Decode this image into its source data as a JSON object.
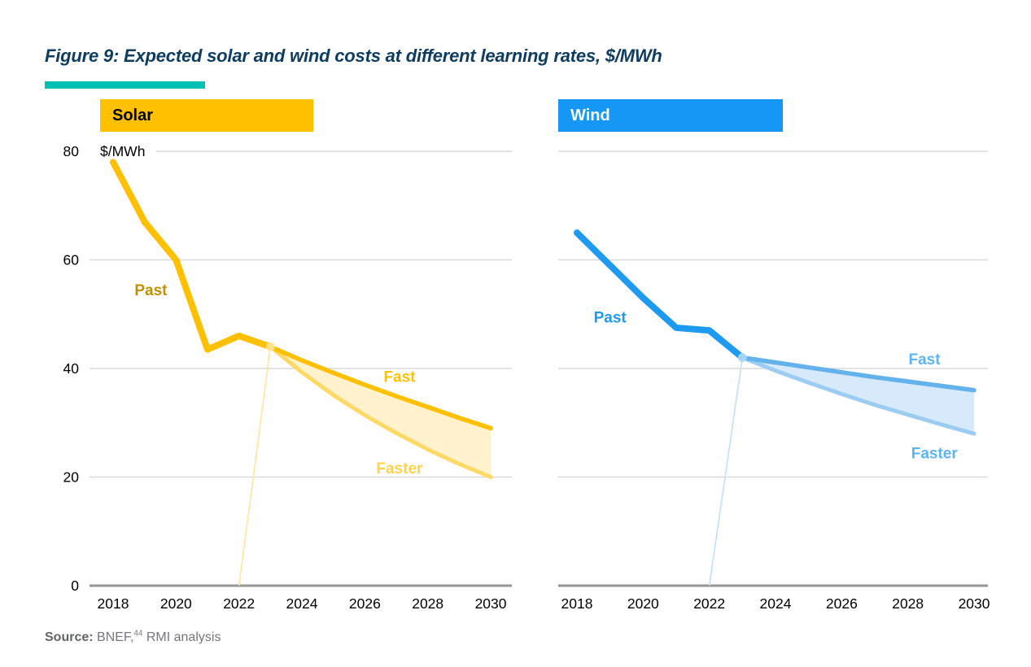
{
  "figure": {
    "title": "Figure 9: Expected solar and wind costs at different learning rates, $/MWh",
    "title_color": "#0E3D60",
    "accent_bar_color": "#00C0B4"
  },
  "source": {
    "label": "Source:",
    "text_pre": "BNEF,",
    "superscript": "44",
    "text_post": "RMI analysis"
  },
  "chart_data": [
    {
      "type": "line",
      "panel": "solar",
      "title": "Solar",
      "unit_label": "$/MWh",
      "ylabel": "$/MWh",
      "x_ticks": [
        2018,
        2020,
        2022,
        2024,
        2026,
        2028,
        2030
      ],
      "y_ticks": [
        0,
        20,
        40,
        60,
        80
      ],
      "ylim": [
        0,
        80
      ],
      "xlim": [
        2018,
        2030
      ],
      "grid": true,
      "show_y_axis": true,
      "projection_start_year": 2023,
      "series": {
        "past": {
          "label": "Past",
          "x": [
            2018,
            2019,
            2020,
            2021,
            2022,
            2023
          ],
          "values": [
            78,
            67,
            60,
            43.5,
            46,
            44
          ],
          "label_pos": {
            "year": 2019.2,
            "value": 54.5
          }
        },
        "fast": {
          "label": "Fast",
          "x": [
            2023,
            2024,
            2025,
            2026,
            2027,
            2028,
            2029,
            2030
          ],
          "values": [
            44,
            41.5,
            39.2,
            37.0,
            34.9,
            32.9,
            30.9,
            29
          ],
          "label_pos": {
            "year": 2027.1,
            "value": 38.6
          }
        },
        "faster": {
          "label": "Faster",
          "x": [
            2023,
            2024,
            2025,
            2026,
            2027,
            2028,
            2029,
            2030
          ],
          "values": [
            44,
            39.3,
            35.1,
            31.4,
            28.1,
            25.1,
            22.4,
            20
          ],
          "label_pos": {
            "year": 2027.1,
            "value": 21.7
          }
        }
      },
      "colors": {
        "header_bg": "#FFC000",
        "header_text": "#000000",
        "past_line": "#FFC000",
        "fast_line": "#FFC000",
        "faster_line": "#FFD966",
        "band_fill": "#FFF2CC",
        "past_label": "#BF9000",
        "fast_label": "#FFC200",
        "faster_label": "#FFD34D",
        "leader_line": "#FFE699",
        "split_marker": "#FFE699",
        "grid_line": "#DADADA",
        "axis_line": "#969696",
        "tick_text": "#000000"
      }
    },
    {
      "type": "line",
      "panel": "wind",
      "title": "Wind",
      "unit_label": "",
      "ylabel": "$/MWh",
      "x_ticks": [
        2018,
        2020,
        2022,
        2024,
        2026,
        2028,
        2030
      ],
      "y_ticks": [
        0,
        20,
        40,
        60,
        80
      ],
      "ylim": [
        0,
        80
      ],
      "xlim": [
        2018,
        2030
      ],
      "grid": true,
      "show_y_axis": false,
      "projection_start_year": 2023,
      "series": {
        "past": {
          "label": "Past",
          "x": [
            2018,
            2019,
            2020,
            2021,
            2022,
            2023
          ],
          "values": [
            65,
            59,
            53,
            47.5,
            47,
            42
          ],
          "label_pos": {
            "year": 2019.0,
            "value": 49.5
          }
        },
        "fast": {
          "label": "Fast",
          "x": [
            2023,
            2024,
            2025,
            2026,
            2027,
            2028,
            2029,
            2030
          ],
          "values": [
            42,
            41.1,
            40.2,
            39.3,
            38.4,
            37.6,
            36.8,
            36
          ],
          "label_pos": {
            "year": 2028.5,
            "value": 41.8
          }
        },
        "faster": {
          "label": "Faster",
          "x": [
            2023,
            2024,
            2025,
            2026,
            2027,
            2028,
            2029,
            2030
          ],
          "values": [
            42,
            39.6,
            37.4,
            35.3,
            33.3,
            31.5,
            29.7,
            28
          ],
          "label_pos": {
            "year": 2028.8,
            "value": 24.5
          }
        }
      },
      "colors": {
        "header_bg": "#1697F5",
        "header_text": "#FFFFFF",
        "past_line": "#1E9BF0",
        "fast_line": "#64B2EC",
        "faster_line": "#9DCCF2",
        "band_fill": "#D7EAFB",
        "past_label": "#1E9BF0",
        "fast_label": "#5CB5F2",
        "faster_label": "#5CB5F2",
        "leader_line": "#BDE0F7",
        "split_marker": "#AFD9F8",
        "grid_line": "#DADADA",
        "axis_line": "#969696",
        "tick_text": "#000000"
      }
    }
  ]
}
